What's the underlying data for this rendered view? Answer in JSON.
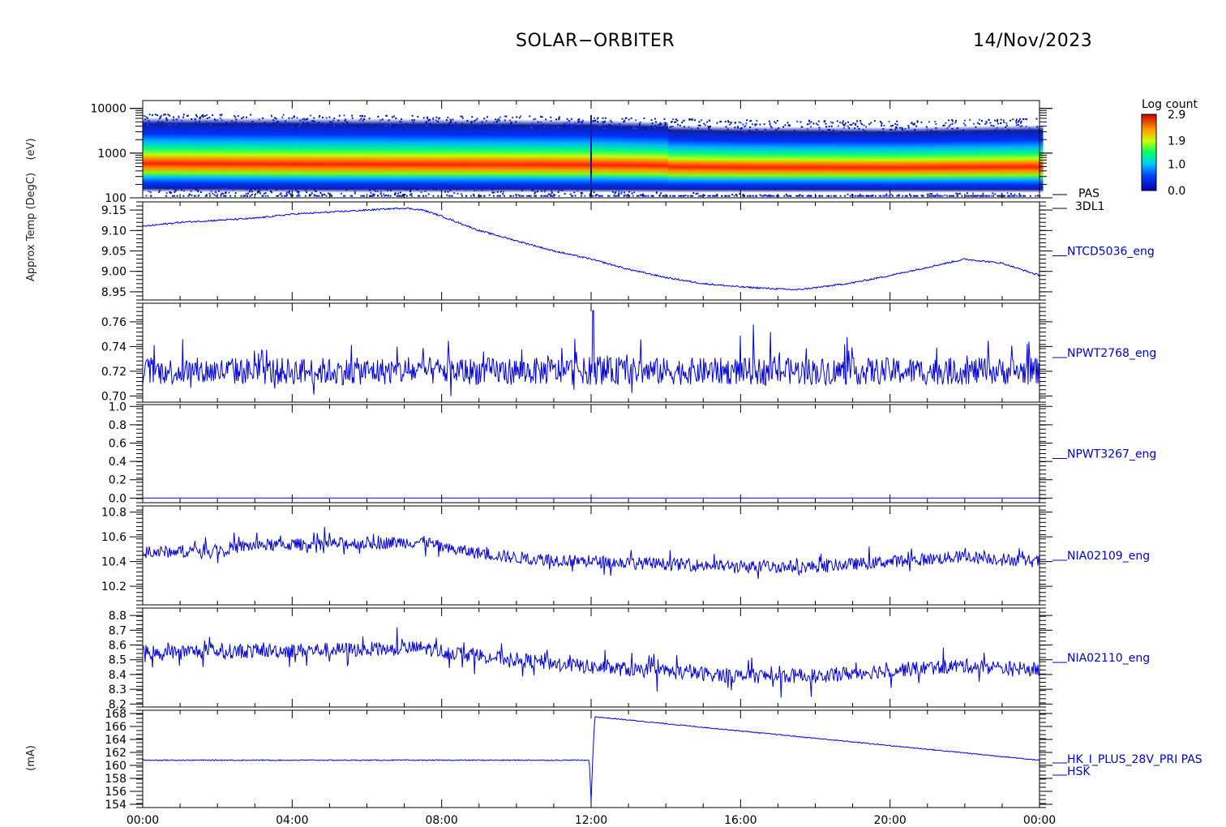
{
  "header": {
    "title": "SOLAR−ORBITER",
    "date": "14/Nov/2023"
  },
  "colors": {
    "trace": "#0000dd",
    "label": "#0000cc",
    "axis": "#000000"
  },
  "colorbar": {
    "title": "Log count",
    "ticks": [
      {
        "value": 2.9,
        "label": "2.9"
      },
      {
        "value": 1.9,
        "label": "1.9"
      },
      {
        "value": 1.0,
        "label": "1.0"
      },
      {
        "value": 0.0,
        "label": "0.0"
      }
    ],
    "range": [
      0.0,
      2.9
    ]
  },
  "y_axis_titles": [
    "Approx Temp (DegC)",
    "(mA)"
  ],
  "chart_data": [
    {
      "type": "heatmap",
      "label": [
        "PAS",
        "3DL1"
      ],
      "ylabel": "(eV)",
      "yscale": "log",
      "ylim": [
        100,
        15000
      ],
      "yticks": [
        {
          "value": 100,
          "label": "100"
        },
        {
          "value": 1000,
          "label": "1000"
        },
        {
          "value": 10000,
          "label": "10000"
        }
      ],
      "ridge": {
        "x_hours": [
          0,
          4,
          8,
          12,
          14,
          16,
          20,
          24
        ],
        "energy_ev": [
          700,
          680,
          650,
          620,
          560,
          520,
          500,
          560
        ]
      }
    },
    {
      "type": "line",
      "label": [
        "NTCD5036_eng"
      ],
      "ylim": [
        8.93,
        9.17
      ],
      "yticks": [
        {
          "value": 8.95,
          "label": "8.95"
        },
        {
          "value": 9.0,
          "label": "9.00"
        },
        {
          "value": 9.05,
          "label": "9.05"
        },
        {
          "value": 9.1,
          "label": "9.10"
        },
        {
          "value": 9.15,
          "label": "9.15"
        }
      ],
      "x_hours": [
        0,
        1,
        2,
        3,
        4,
        5,
        6,
        7,
        7.5,
        8,
        9,
        10,
        11,
        12,
        13,
        14,
        15,
        16,
        17,
        17.5,
        18,
        19,
        20,
        21,
        22,
        23,
        24
      ],
      "y": [
        9.11,
        9.12,
        9.125,
        9.13,
        9.14,
        9.145,
        9.15,
        9.155,
        9.15,
        9.135,
        9.1,
        9.075,
        9.05,
        9.03,
        9.005,
        8.985,
        8.97,
        8.962,
        8.957,
        8.955,
        8.96,
        8.972,
        8.99,
        9.01,
        9.03,
        9.02,
        8.99
      ]
    },
    {
      "type": "line",
      "label": [
        "NPWT2768_eng"
      ],
      "ylim": [
        0.695,
        0.775
      ],
      "yticks": [
        {
          "value": 0.7,
          "label": "0.70"
        },
        {
          "value": 0.72,
          "label": "0.72"
        },
        {
          "value": 0.74,
          "label": "0.74"
        },
        {
          "value": 0.76,
          "label": "0.76"
        }
      ],
      "x_hours": [
        0,
        24
      ],
      "y": [
        0.72,
        0.72
      ]
    },
    {
      "type": "line",
      "label": [
        "NPWT3267_eng"
      ],
      "ylim": [
        -0.05,
        1.02
      ],
      "yticks": [
        {
          "value": 0.0,
          "label": "0.0"
        },
        {
          "value": 0.2,
          "label": "0.2"
        },
        {
          "value": 0.4,
          "label": "0.4"
        },
        {
          "value": 0.6,
          "label": "0.6"
        },
        {
          "value": 0.8,
          "label": "0.8"
        },
        {
          "value": 1.0,
          "label": "1.0"
        }
      ],
      "x_hours": [
        0,
        24
      ],
      "y": [
        0.0,
        0.0
      ]
    },
    {
      "type": "line",
      "label": [
        "NIA02109_eng"
      ],
      "ylim": [
        10.05,
        10.85
      ],
      "yticks": [
        {
          "value": 10.2,
          "label": "10.2"
        },
        {
          "value": 10.4,
          "label": "10.4"
        },
        {
          "value": 10.6,
          "label": "10.6"
        },
        {
          "value": 10.8,
          "label": "10.8"
        }
      ],
      "x_hours": [
        0,
        2,
        3,
        6,
        7.5,
        8.2,
        10,
        12,
        14,
        16,
        18,
        20,
        22,
        24
      ],
      "y": [
        10.47,
        10.5,
        10.53,
        10.55,
        10.56,
        10.5,
        10.43,
        10.4,
        10.38,
        10.36,
        10.36,
        10.4,
        10.44,
        10.4
      ]
    },
    {
      "type": "line",
      "label": [
        "NIA02110_eng"
      ],
      "ylim": [
        8.18,
        8.85
      ],
      "yticks": [
        {
          "value": 8.2,
          "label": "8.2"
        },
        {
          "value": 8.3,
          "label": "8.3"
        },
        {
          "value": 8.4,
          "label": "8.4"
        },
        {
          "value": 8.5,
          "label": "8.5"
        },
        {
          "value": 8.6,
          "label": "8.6"
        },
        {
          "value": 8.7,
          "label": "8.7"
        },
        {
          "value": 8.8,
          "label": "8.8"
        }
      ],
      "x_hours": [
        0,
        3,
        6,
        7.5,
        8.2,
        10,
        12,
        14,
        16,
        18,
        20,
        22,
        24
      ],
      "y": [
        8.55,
        8.56,
        8.57,
        8.58,
        8.55,
        8.5,
        8.45,
        8.42,
        8.39,
        8.39,
        8.43,
        8.46,
        8.43
      ]
    },
    {
      "type": "line",
      "label": [
        "HK_I_PLUS_28V_PRI PAS",
        "HSK"
      ],
      "ylim": [
        153.5,
        168.5
      ],
      "yticks": [
        {
          "value": 154,
          "label": "154"
        },
        {
          "value": 156,
          "label": "156"
        },
        {
          "value": 158,
          "label": "158"
        },
        {
          "value": 160,
          "label": "160"
        },
        {
          "value": 162,
          "label": "162"
        },
        {
          "value": 164,
          "label": "164"
        },
        {
          "value": 166,
          "label": "166"
        },
        {
          "value": 168,
          "label": "168"
        }
      ],
      "x_hours": [
        0,
        11.95,
        12.0,
        12.05,
        12.1,
        24
      ],
      "y": [
        160.8,
        160.8,
        154.5,
        162,
        167.5,
        160.8
      ]
    }
  ],
  "x_axis": {
    "range_hours": [
      0,
      24
    ],
    "ticks": [
      {
        "value": 0,
        "label": "00:00"
      },
      {
        "value": 4,
        "label": "04:00"
      },
      {
        "value": 8,
        "label": "08:00"
      },
      {
        "value": 12,
        "label": "12:00"
      },
      {
        "value": 16,
        "label": "16:00"
      },
      {
        "value": 20,
        "label": "20:00"
      },
      {
        "value": 24,
        "label": "00:00"
      }
    ]
  }
}
